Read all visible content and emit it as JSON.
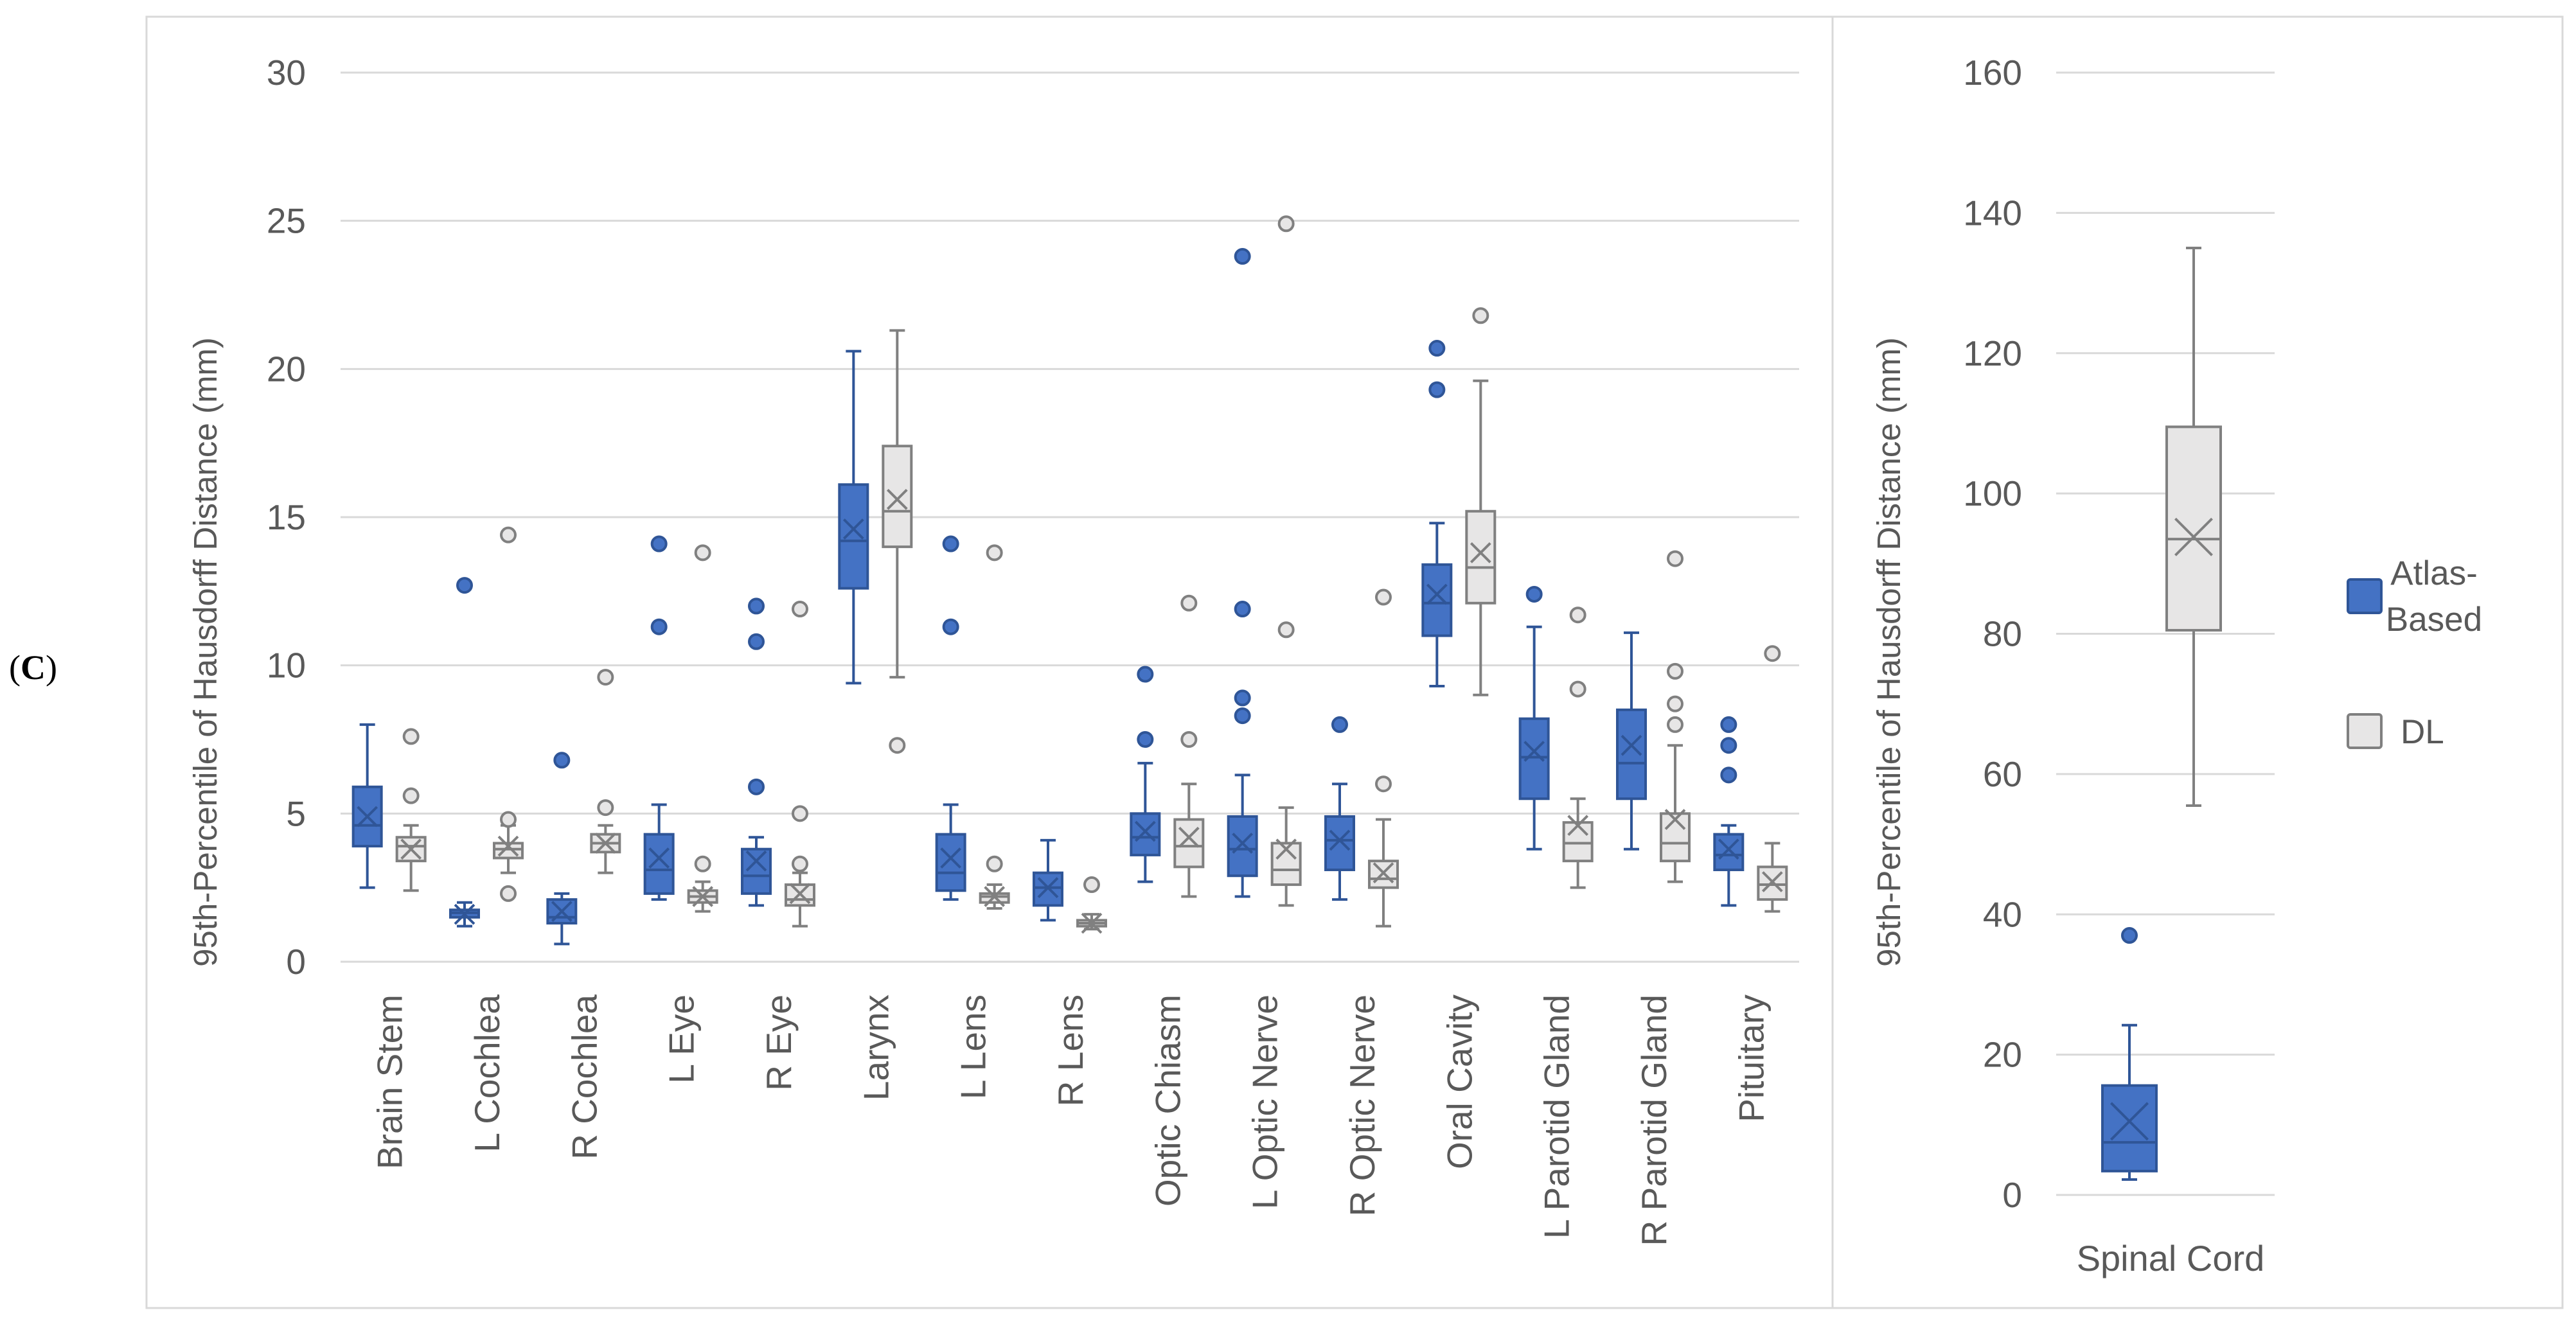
{
  "panel_label": {
    "open": "(",
    "letter": "C",
    "close": ")"
  },
  "colors": {
    "atlas_fill": "#4472C4",
    "atlas_stroke": "#2F5597",
    "dl_fill": "#E7E6E6",
    "dl_stroke": "#808080",
    "grid": "#D9D9D9",
    "text": "#595959",
    "frame": "#D9D9D9"
  },
  "chart_data": [
    {
      "type": "box",
      "title": "",
      "xlabel": "",
      "ylabel": "95th-Percentile of Hausdorff Distance (mm)",
      "ylim": [
        0,
        30
      ],
      "yticks": [
        0,
        5,
        10,
        15,
        20,
        25,
        30
      ],
      "categories": [
        "Brain Stem",
        "L Cochlea",
        "R Cochlea",
        "L Eye",
        "R Eye",
        "Larynx",
        "L Lens",
        "R Lens",
        "Optic Chiasm",
        "L Optic Nerve",
        "R Optic Nerve",
        "Oral Cavity",
        "L Parotid Gland",
        "R Parotid Gland",
        "Pituitary"
      ],
      "series": [
        {
          "name": "Atlas-Based",
          "boxes": [
            {
              "min": 2.5,
              "q1": 3.9,
              "median": 4.6,
              "q3": 5.9,
              "max": 8.0,
              "mean": 4.9,
              "outliers": []
            },
            {
              "min": 1.2,
              "q1": 1.5,
              "median": 1.65,
              "q3": 1.75,
              "max": 2.0,
              "mean": 1.6,
              "outliers": [
                12.7
              ]
            },
            {
              "min": 0.6,
              "q1": 1.3,
              "median": 1.5,
              "q3": 2.1,
              "max": 2.3,
              "mean": 1.7,
              "outliers": [
                6.8
              ]
            },
            {
              "min": 2.1,
              "q1": 2.3,
              "median": 3.1,
              "q3": 4.3,
              "max": 5.3,
              "mean": 3.5,
              "outliers": [
                11.3,
                14.1
              ]
            },
            {
              "min": 1.9,
              "q1": 2.3,
              "median": 2.9,
              "q3": 3.8,
              "max": 4.2,
              "mean": 3.4,
              "outliers": [
                5.9,
                10.8,
                12.0
              ]
            },
            {
              "min": 9.4,
              "q1": 12.6,
              "median": 14.2,
              "q3": 16.1,
              "max": 20.6,
              "mean": 14.6,
              "outliers": []
            },
            {
              "min": 2.1,
              "q1": 2.4,
              "median": 3.0,
              "q3": 4.3,
              "max": 5.3,
              "mean": 3.5,
              "outliers": [
                11.3,
                14.1
              ]
            },
            {
              "min": 1.4,
              "q1": 1.9,
              "median": 2.5,
              "q3": 3.0,
              "max": 4.1,
              "mean": 2.5,
              "outliers": []
            },
            {
              "min": 2.7,
              "q1": 3.6,
              "median": 4.2,
              "q3": 5.0,
              "max": 6.7,
              "mean": 4.4,
              "outliers": [
                7.5,
                9.7
              ]
            },
            {
              "min": 2.2,
              "q1": 2.9,
              "median": 3.8,
              "q3": 4.9,
              "max": 6.3,
              "mean": 4.0,
              "outliers": [
                8.3,
                8.9,
                11.9,
                23.8
              ]
            },
            {
              "min": 2.1,
              "q1": 3.1,
              "median": 4.1,
              "q3": 4.9,
              "max": 6.0,
              "mean": 4.1,
              "outliers": [
                8.0
              ]
            },
            {
              "min": 9.3,
              "q1": 11.0,
              "median": 12.1,
              "q3": 13.4,
              "max": 14.8,
              "mean": 12.4,
              "outliers": [
                19.3,
                20.7
              ]
            },
            {
              "min": 3.8,
              "q1": 5.5,
              "median": 6.9,
              "q3": 8.2,
              "max": 11.3,
              "mean": 7.1,
              "outliers": [
                12.4
              ]
            },
            {
              "min": 3.8,
              "q1": 5.5,
              "median": 6.7,
              "q3": 8.5,
              "max": 11.1,
              "mean": 7.3,
              "outliers": []
            },
            {
              "min": 1.9,
              "q1": 3.1,
              "median": 3.6,
              "q3": 4.3,
              "max": 4.6,
              "mean": 3.8,
              "outliers": [
                6.3,
                7.3,
                8.0
              ]
            }
          ]
        },
        {
          "name": "DL",
          "boxes": [
            {
              "min": 2.4,
              "q1": 3.4,
              "median": 3.9,
              "q3": 4.2,
              "max": 4.6,
              "mean": 3.8,
              "outliers": [
                5.6,
                7.6
              ]
            },
            {
              "min": 3.0,
              "q1": 3.5,
              "median": 3.8,
              "q3": 4.0,
              "max": 4.6,
              "mean": 3.9,
              "outliers": [
                2.3,
                4.8,
                14.4
              ]
            },
            {
              "min": 3.0,
              "q1": 3.7,
              "median": 4.0,
              "q3": 4.3,
              "max": 4.6,
              "mean": 4.0,
              "outliers": [
                5.2,
                9.6
              ]
            },
            {
              "min": 1.7,
              "q1": 2.0,
              "median": 2.2,
              "q3": 2.4,
              "max": 2.7,
              "mean": 2.2,
              "outliers": [
                3.3,
                13.8
              ]
            },
            {
              "min": 1.2,
              "q1": 1.9,
              "median": 2.1,
              "q3": 2.6,
              "max": 3.0,
              "mean": 2.3,
              "outliers": [
                3.3,
                5.0,
                11.9
              ]
            },
            {
              "min": 9.6,
              "q1": 14.0,
              "median": 15.2,
              "q3": 17.4,
              "max": 21.3,
              "mean": 15.6,
              "outliers": [
                7.3
              ]
            },
            {
              "min": 1.8,
              "q1": 2.0,
              "median": 2.2,
              "q3": 2.3,
              "max": 2.6,
              "mean": 2.2,
              "outliers": [
                3.3,
                13.8
              ]
            },
            {
              "min": 1.1,
              "q1": 1.2,
              "median": 1.3,
              "q3": 1.4,
              "max": 1.6,
              "mean": 1.3,
              "outliers": [
                2.6
              ]
            },
            {
              "min": 2.2,
              "q1": 3.2,
              "median": 3.9,
              "q3": 4.8,
              "max": 6.0,
              "mean": 4.2,
              "outliers": [
                7.5,
                12.1
              ]
            },
            {
              "min": 1.9,
              "q1": 2.6,
              "median": 3.1,
              "q3": 4.0,
              "max": 5.2,
              "mean": 3.8,
              "outliers": [
                11.2,
                24.9
              ]
            },
            {
              "min": 1.2,
              "q1": 2.5,
              "median": 2.8,
              "q3": 3.4,
              "max": 4.8,
              "mean": 3.0,
              "outliers": [
                6.0,
                12.3
              ]
            },
            {
              "min": 9.0,
              "q1": 12.1,
              "median": 13.3,
              "q3": 15.2,
              "max": 19.6,
              "mean": 13.8,
              "outliers": [
                21.8
              ]
            },
            {
              "min": 2.5,
              "q1": 3.4,
              "median": 4.0,
              "q3": 4.7,
              "max": 5.5,
              "mean": 4.6,
              "outliers": [
                9.2,
                11.7
              ]
            },
            {
              "min": 2.7,
              "q1": 3.4,
              "median": 4.0,
              "q3": 5.0,
              "max": 7.3,
              "mean": 4.8,
              "outliers": [
                8.0,
                8.7,
                9.8,
                13.6
              ]
            },
            {
              "min": 1.7,
              "q1": 2.1,
              "median": 2.6,
              "q3": 3.2,
              "max": 4.0,
              "mean": 2.7,
              "outliers": [
                10.4
              ]
            }
          ]
        }
      ]
    },
    {
      "type": "box",
      "title": "",
      "xlabel": "",
      "ylabel": "95th-Percentile of Hausdorff Distance (mm)",
      "ylim": [
        0,
        160
      ],
      "yticks": [
        0,
        20,
        40,
        60,
        80,
        100,
        120,
        140,
        160
      ],
      "categories": [
        "Spinal Cord"
      ],
      "series": [
        {
          "name": "Atlas-Based",
          "boxes": [
            {
              "min": 2.2,
              "q1": 3.4,
              "median": 7.5,
              "q3": 15.6,
              "max": 24.2,
              "mean": 10.5,
              "outliers": [
                37.0
              ]
            }
          ]
        },
        {
          "name": "DL",
          "boxes": [
            {
              "min": 55.5,
              "q1": 80.5,
              "median": 93.5,
              "q3": 109.5,
              "max": 135.0,
              "mean": 93.8,
              "outliers": []
            }
          ]
        }
      ],
      "legend": {
        "position": "right",
        "entries": [
          {
            "label_line1": "Atlas-",
            "label_line2": "Based"
          },
          {
            "label_line1": "DL",
            "label_line2": ""
          }
        ]
      }
    }
  ]
}
